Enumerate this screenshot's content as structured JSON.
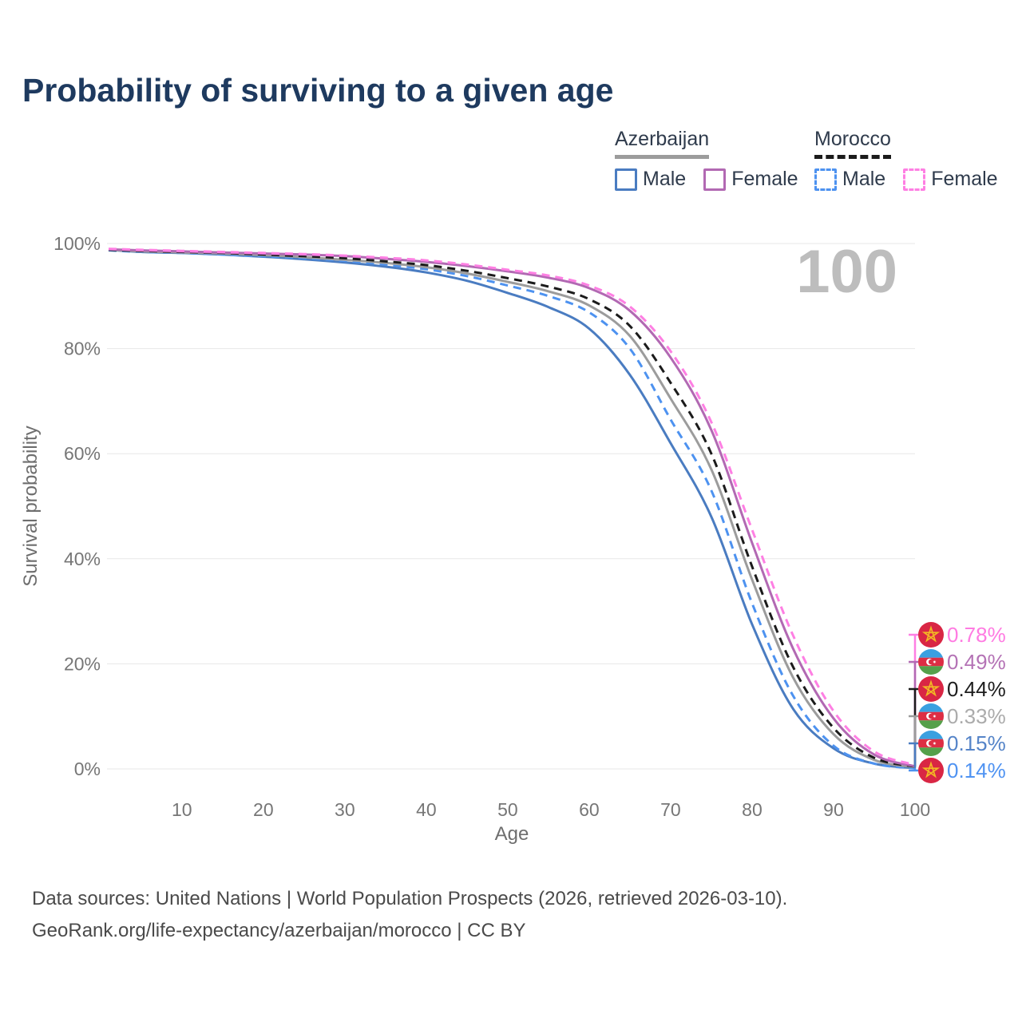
{
  "title": "Probability of surviving to a given age",
  "watermark_age_label": "100",
  "legend": {
    "azerbaijan": {
      "title": "Azerbaijan",
      "male_label": "Male",
      "female_label": "Female"
    },
    "morocco": {
      "title": "Morocco",
      "male_label": "Male",
      "female_label": "Female"
    }
  },
  "colors": {
    "azerbaijan_male": "#4a7cc1",
    "azerbaijan_female": "#b269b3",
    "azerbaijan_all": "#9c9c9c",
    "morocco_male": "#4d92f0",
    "morocco_female": "#fe7fe3",
    "morocco_all": "#1b1b1b",
    "grid": "#e7e7e7",
    "axis_text": "#767676",
    "watermark": "#bdbdbd",
    "title": "#1e3a5f"
  },
  "chart_data": {
    "type": "line",
    "title": "Probability of surviving to a given age",
    "xlabel": "Age",
    "ylabel": "Survival probability",
    "xlim": [
      1,
      100
    ],
    "ylim": [
      0,
      100
    ],
    "grid": "horizontal",
    "legend_position": "top-right",
    "x_ticks": [
      10,
      20,
      30,
      40,
      50,
      60,
      70,
      80,
      90,
      100
    ],
    "y_ticks": [
      0,
      20,
      40,
      60,
      80,
      100
    ],
    "y_tick_labels": [
      "0%",
      "20%",
      "40%",
      "60%",
      "80%",
      "100%"
    ],
    "ages": [
      1,
      5,
      10,
      15,
      20,
      25,
      30,
      35,
      40,
      45,
      50,
      55,
      60,
      65,
      70,
      75,
      80,
      85,
      90,
      95,
      100
    ],
    "series": [
      {
        "id": "azerbaijan_male",
        "name": "Azerbaijan Male",
        "country": "Azerbaijan",
        "sex": "male",
        "color": "#4a7cc1",
        "dashed": false,
        "flag": "azerbaijan",
        "end_label": "0.15%",
        "end_label_color": "#5584c8",
        "values": [
          98.8,
          98.4,
          98.2,
          97.9,
          97.5,
          97.0,
          96.4,
          95.6,
          94.5,
          92.9,
          90.6,
          87.9,
          83.8,
          75.0,
          62.0,
          48.0,
          27.5,
          11.5,
          3.9,
          1.0,
          0.15
        ]
      },
      {
        "id": "morocco_male",
        "name": "Morocco Male",
        "country": "Morocco",
        "sex": "male",
        "color": "#4d92f0",
        "dashed": true,
        "flag": "morocco",
        "end_label": "0.14%",
        "end_label_color": "#4f93f2",
        "values": [
          98.7,
          98.4,
          98.2,
          97.9,
          97.6,
          97.2,
          96.7,
          96.0,
          95.1,
          93.8,
          92.0,
          90.0,
          86.9,
          80.0,
          66.5,
          53.0,
          31.5,
          14.0,
          4.4,
          1.0,
          0.14
        ]
      },
      {
        "id": "azerbaijan_all",
        "name": "Azerbaijan",
        "country": "Azerbaijan",
        "sex": "both",
        "color": "#9c9c9c",
        "dashed": false,
        "flag": "azerbaijan",
        "end_label": "0.33%",
        "end_label_color": "#ababab",
        "values": [
          98.8,
          98.5,
          98.3,
          98.1,
          97.8,
          97.4,
          96.9,
          96.3,
          95.5,
          94.3,
          92.7,
          90.9,
          88.2,
          82.4,
          70.5,
          57.0,
          36.0,
          17.5,
          6.6,
          1.7,
          0.33
        ]
      },
      {
        "id": "morocco_all",
        "name": "Morocco",
        "country": "Morocco",
        "sex": "both",
        "color": "#1b1b1b",
        "dashed": true,
        "flag": "morocco",
        "end_label": "0.44%",
        "end_label_color": "#1d1d1d",
        "values": [
          98.8,
          98.6,
          98.4,
          98.2,
          97.9,
          97.6,
          97.2,
          96.6,
          95.9,
          94.8,
          93.4,
          91.8,
          89.4,
          84.3,
          73.5,
          60.0,
          38.5,
          19.5,
          7.8,
          2.1,
          0.44
        ]
      },
      {
        "id": "azerbaijan_female",
        "name": "Azerbaijan Female",
        "country": "Azerbaijan",
        "sex": "female",
        "color": "#b269b3",
        "dashed": false,
        "flag": "azerbaijan",
        "end_label": "0.49%",
        "end_label_color": "#b472b5",
        "values": [
          98.9,
          98.7,
          98.5,
          98.3,
          98.1,
          97.9,
          97.6,
          97.1,
          96.5,
          95.7,
          94.7,
          93.5,
          91.5,
          87.2,
          78.3,
          64.5,
          43.0,
          23.0,
          9.6,
          2.7,
          0.49
        ]
      },
      {
        "id": "morocco_female",
        "name": "Morocco Female",
        "country": "Morocco",
        "sex": "female",
        "color": "#fe7fe3",
        "dashed": true,
        "flag": "morocco",
        "end_label": "0.78%",
        "end_label_color": "#ff7be2",
        "values": [
          99.0,
          98.8,
          98.6,
          98.4,
          98.2,
          98.0,
          97.7,
          97.3,
          96.8,
          96.0,
          95.0,
          93.9,
          92.0,
          88.0,
          79.5,
          66.0,
          45.5,
          25.5,
          11.0,
          3.3,
          0.78
        ]
      }
    ],
    "end_labels_order": [
      "morocco_female",
      "azerbaijan_female",
      "morocco_all",
      "azerbaijan_all",
      "azerbaijan_male",
      "morocco_male"
    ]
  },
  "footer": {
    "line1": "Data sources: United Nations | World Population Prospects (2026, retrieved 2026-03-10).",
    "line2": "GeoRank.org/life-expectancy/azerbaijan/morocco | CC BY"
  }
}
